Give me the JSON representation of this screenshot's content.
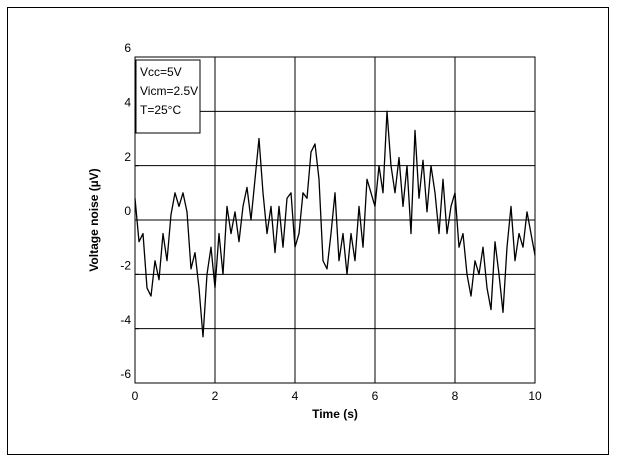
{
  "chart_data": {
    "type": "line",
    "xlabel": "Time (s)",
    "ylabel": "Voltage noise (µV)",
    "annotations": [
      "Vcc=5V",
      "Vicm=2.5V",
      "T=25°C"
    ],
    "x": [
      0,
      0.1,
      0.2,
      0.3,
      0.4,
      0.5,
      0.6,
      0.7,
      0.8,
      0.9,
      1,
      1.1,
      1.2,
      1.3,
      1.4,
      1.5,
      1.6,
      1.7,
      1.8,
      1.9,
      2,
      2.1,
      2.2,
      2.3,
      2.4,
      2.5,
      2.6,
      2.7,
      2.8,
      2.9,
      3,
      3.1,
      3.2,
      3.3,
      3.4,
      3.5,
      3.6,
      3.7,
      3.8,
      3.9,
      4,
      4.1,
      4.2,
      4.3,
      4.4,
      4.5,
      4.6,
      4.7,
      4.8,
      4.9,
      5,
      5.1,
      5.2,
      5.3,
      5.4,
      5.5,
      5.6,
      5.7,
      5.8,
      5.9,
      6,
      6.1,
      6.2,
      6.3,
      6.4,
      6.5,
      6.6,
      6.7,
      6.8,
      6.9,
      7,
      7.1,
      7.2,
      7.3,
      7.4,
      7.5,
      7.6,
      7.7,
      7.8,
      7.9,
      8,
      8.1,
      8.2,
      8.3,
      8.4,
      8.5,
      8.6,
      8.7,
      8.8,
      8.9,
      9,
      9.1,
      9.2,
      9.3,
      9.4,
      9.5,
      9.6,
      9.7,
      9.8,
      9.9,
      10
    ],
    "series": [
      {
        "name": "Voltage noise",
        "color": "#000000",
        "values": [
          0.8,
          -0.8,
          -0.5,
          -2.5,
          -2.8,
          -1.5,
          -2.2,
          -0.5,
          -1.5,
          0.2,
          1.0,
          0.5,
          1.0,
          0.3,
          -1.8,
          -1.2,
          -2.5,
          -4.3,
          -2.0,
          -1.0,
          -2.5,
          -0.5,
          -2.0,
          0.5,
          -0.5,
          0.3,
          -0.8,
          0.5,
          1.2,
          0.0,
          1.5,
          3.0,
          1.0,
          -0.5,
          0.5,
          -1.2,
          0.5,
          -1.0,
          0.8,
          1.0,
          -1.0,
          -0.5,
          1.0,
          0.8,
          2.5,
          2.8,
          1.5,
          -1.5,
          -1.8,
          -0.5,
          1.0,
          -1.5,
          -0.5,
          -2.0,
          -0.5,
          -1.5,
          0.5,
          -1.0,
          1.5,
          1.0,
          0.5,
          2.0,
          1.0,
          4.0,
          2.0,
          1.0,
          2.3,
          0.5,
          2.0,
          -0.5,
          3.3,
          0.8,
          2.2,
          0.3,
          2.0,
          1.0,
          -0.5,
          1.5,
          -0.5,
          0.5,
          1.0,
          -1.0,
          -0.5,
          -2.0,
          -2.8,
          -1.5,
          -2.0,
          -1.0,
          -2.5,
          -3.3,
          -0.8,
          -2.0,
          -3.4,
          -1.0,
          0.5,
          -1.5,
          -0.5,
          -1.0,
          0.3,
          -0.5,
          -1.3
        ]
      }
    ],
    "xlim": [
      0,
      10
    ],
    "xticks": [
      0,
      2,
      4,
      6,
      8,
      10
    ],
    "ylim": [
      -6,
      6
    ],
    "yticks": [
      -6,
      -4,
      -2,
      0,
      2,
      4,
      6
    ],
    "grid": true
  }
}
